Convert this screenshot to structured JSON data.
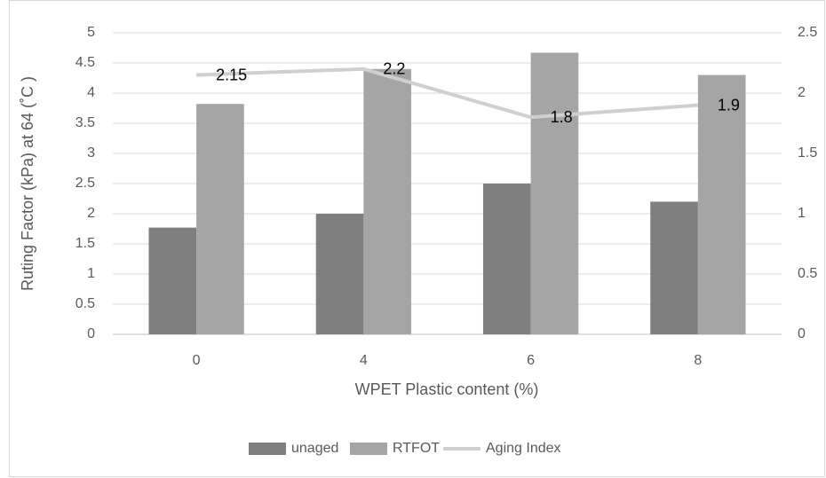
{
  "chart_data": {
    "type": "bar",
    "x_label": "WPET Plastic content (%)",
    "y_label": "Ruting Factor (kPa) at  64 (˚C )",
    "categories": [
      "0",
      "4",
      "6",
      "8"
    ],
    "series": [
      {
        "name": "unaged",
        "color": "#7f7f7f",
        "values": [
          1.77,
          2.0,
          2.5,
          2.2
        ]
      },
      {
        "name": "RTFOT",
        "color": "#a5a5a5",
        "values": [
          3.82,
          4.4,
          4.67,
          4.3
        ]
      },
      {
        "name": "Aging Index",
        "color": "#cfcfcf",
        "type": "line",
        "axis": "y2",
        "data_labels": true,
        "values": [
          2.15,
          2.2,
          1.8,
          1.9
        ]
      }
    ],
    "ylim": [
      0,
      5
    ],
    "yticks": [
      0,
      0.5,
      1,
      1.5,
      2,
      2.5,
      3,
      3.5,
      4,
      4.5,
      5
    ],
    "y2lim": [
      0,
      2.5
    ],
    "y2ticks": [
      0,
      0.5,
      1,
      1.5,
      2,
      2.5
    ],
    "grid": true,
    "legend": "bottom"
  }
}
